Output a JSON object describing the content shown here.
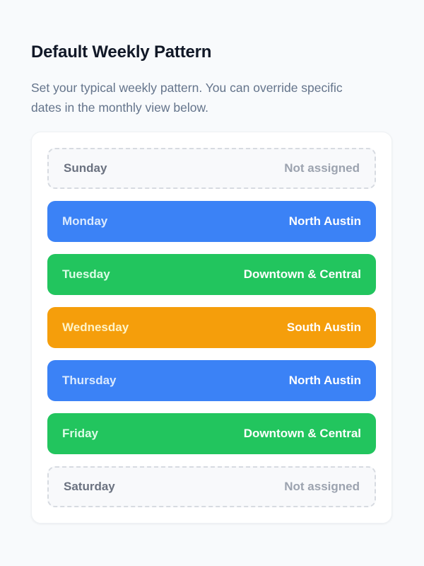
{
  "header": {
    "title": "Default Weekly Pattern",
    "description": "Set your typical weekly pattern. You can override specific dates in the monthly view below."
  },
  "schedule": {
    "unassigned_label": "Not assigned",
    "colors": {
      "blue": {
        "row_bg": "#3b82f6",
        "day_text": "#dbeafe"
      },
      "green": {
        "row_bg": "#22c55e",
        "day_text": "#dcfce7"
      },
      "amber": {
        "row_bg": "#f59e0b",
        "day_text": "#fef3c7"
      }
    },
    "days": [
      {
        "day": "Sunday",
        "assignment": "Not assigned",
        "status": "unassigned",
        "color": null
      },
      {
        "day": "Monday",
        "assignment": "North Austin",
        "status": "assigned",
        "color": "blue"
      },
      {
        "day": "Tuesday",
        "assignment": "Downtown & Central",
        "status": "assigned",
        "color": "green"
      },
      {
        "day": "Wednesday",
        "assignment": "South Austin",
        "status": "assigned",
        "color": "amber"
      },
      {
        "day": "Thursday",
        "assignment": "North Austin",
        "status": "assigned",
        "color": "blue"
      },
      {
        "day": "Friday",
        "assignment": "Downtown & Central",
        "status": "assigned",
        "color": "green"
      },
      {
        "day": "Saturday",
        "assignment": "Not assigned",
        "status": "unassigned",
        "color": null
      }
    ]
  }
}
